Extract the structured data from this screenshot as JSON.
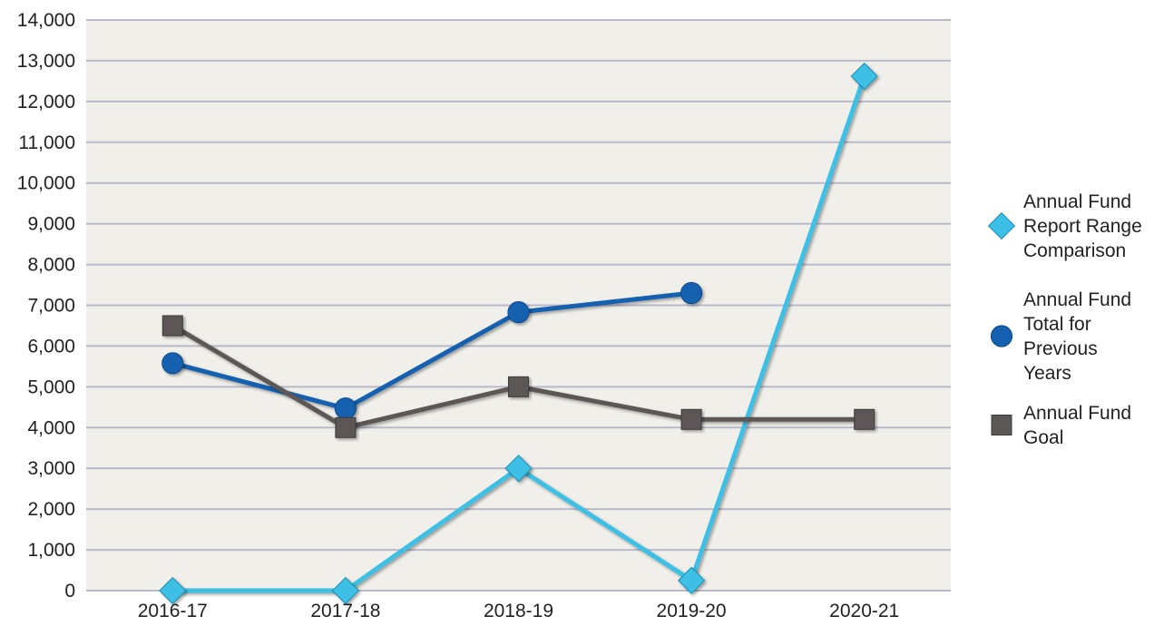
{
  "chart_data": {
    "type": "line",
    "title": "",
    "xlabel": "",
    "ylabel": "",
    "categories": [
      "2016-17",
      "2017-18",
      "2018-19",
      "2019-20",
      "2020-21"
    ],
    "ylim": [
      0,
      14000
    ],
    "yticks": [
      0,
      1000,
      2000,
      3000,
      4000,
      5000,
      6000,
      7000,
      8000,
      9000,
      10000,
      11000,
      12000,
      13000,
      14000
    ],
    "ytick_labels": [
      "0",
      "1,000",
      "2,000",
      "3,000",
      "4,000",
      "5,000",
      "6,000",
      "7,000",
      "8,000",
      "9,000",
      "10,000",
      "11,000",
      "12,000",
      "13,000",
      "14,000"
    ],
    "grid": true,
    "legend_position": "right",
    "plot_background": "#f0efe9",
    "gridline_color": "#b9b9cc",
    "series": [
      {
        "name": "Annual Fund Report Range Comparison",
        "legend_lines": [
          "Annual Fund",
          "Report Range",
          "Comparison"
        ],
        "marker": "diamond",
        "color": "#3cbfe6",
        "values": [
          0,
          0,
          3000,
          250,
          12620
        ]
      },
      {
        "name": "Annual Fund Total for Previous Years",
        "legend_lines": [
          "Annual Fund",
          "Total for",
          "Previous",
          "Years"
        ],
        "marker": "circle",
        "color": "#1560b0",
        "values": [
          5580,
          4470,
          6830,
          7300,
          null
        ]
      },
      {
        "name": "Annual Fund Goal",
        "legend_lines": [
          "Annual Fund",
          "Goal"
        ],
        "marker": "square",
        "color": "#5b5757",
        "values": [
          6500,
          4000,
          5000,
          4200,
          4200
        ]
      }
    ]
  }
}
